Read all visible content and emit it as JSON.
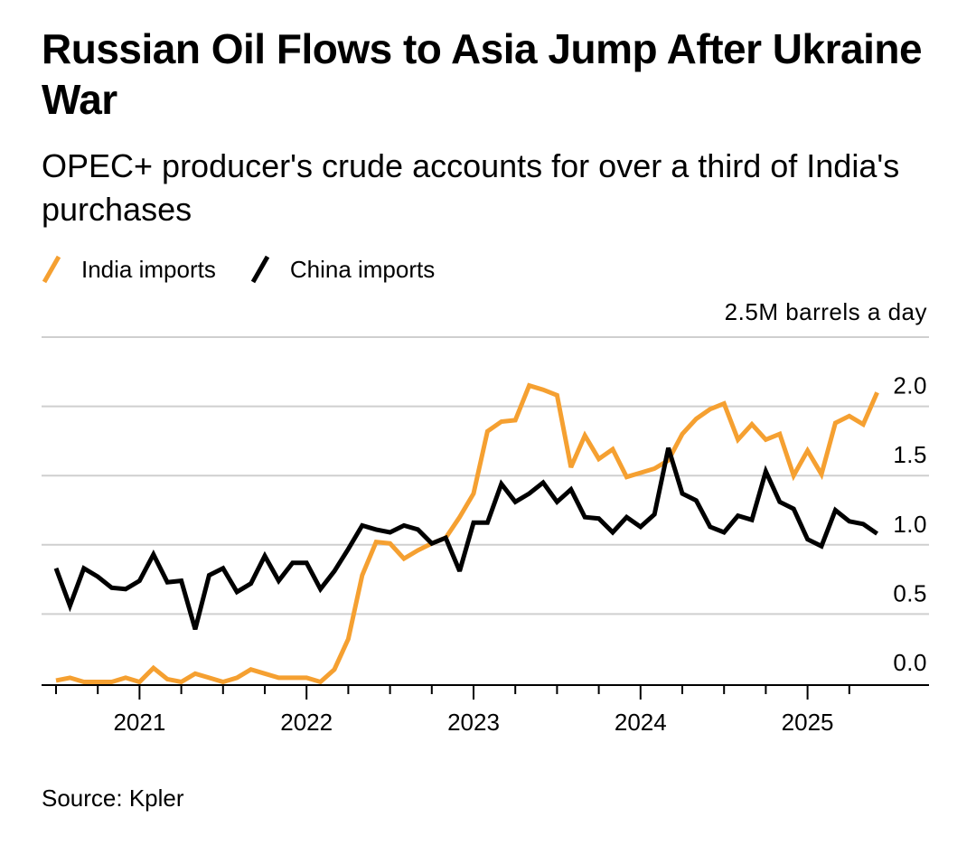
{
  "header": {
    "title": "Russian Oil Flows to Asia Jump After Ukraine War",
    "subtitle": "OPEC+ producer's crude accounts for over a third of India's purchases"
  },
  "legend": [
    {
      "label": "India imports",
      "color": "#f5a031"
    },
    {
      "label": "China imports",
      "color": "#000000"
    }
  ],
  "footer": {
    "source": "Source: Kpler"
  },
  "chart_data": {
    "type": "line",
    "unit_label": "2.5M barrels a day",
    "x_start": "2020-07",
    "x_labels": [
      "2021",
      "2022",
      "2023",
      "2024",
      "2025"
    ],
    "y_tick_labels": [
      "2.0",
      "1.5",
      "1.0",
      "0.5",
      "0.0"
    ],
    "ylim": [
      0,
      2.5
    ],
    "grid": true,
    "legend_position": "top-left",
    "series": [
      {
        "name": "India imports",
        "color": "#f5a031",
        "values": [
          0.02,
          0.04,
          0.01,
          0.01,
          0.01,
          0.04,
          0.01,
          0.11,
          0.03,
          0.01,
          0.07,
          0.04,
          0.01,
          0.04,
          0.1,
          0.07,
          0.04,
          0.04,
          0.04,
          0.01,
          0.1,
          0.32,
          0.78,
          1.02,
          1.01,
          0.9,
          0.96,
          1.01,
          1.05,
          1.2,
          1.37,
          1.82,
          1.89,
          1.9,
          2.15,
          2.12,
          2.08,
          1.56,
          1.79,
          1.62,
          1.69,
          1.49,
          1.52,
          1.55,
          1.61,
          1.8,
          1.91,
          1.98,
          2.02,
          1.76,
          1.87,
          1.76,
          1.8,
          1.5,
          1.68,
          1.51,
          1.88,
          1.93,
          1.87,
          2.1
        ]
      },
      {
        "name": "China imports",
        "color": "#000000",
        "values": [
          0.83,
          0.56,
          0.83,
          0.77,
          0.69,
          0.68,
          0.74,
          0.93,
          0.73,
          0.74,
          0.39,
          0.78,
          0.83,
          0.66,
          0.72,
          0.92,
          0.74,
          0.87,
          0.87,
          0.68,
          0.81,
          0.97,
          1.14,
          1.11,
          1.09,
          1.14,
          1.11,
          1.01,
          1.05,
          0.81,
          1.16,
          1.16,
          1.44,
          1.31,
          1.37,
          1.45,
          1.31,
          1.4,
          1.2,
          1.19,
          1.09,
          1.2,
          1.13,
          1.22,
          1.7,
          1.37,
          1.32,
          1.13,
          1.09,
          1.21,
          1.18,
          1.53,
          1.31,
          1.26,
          1.04,
          0.99,
          1.25,
          1.17,
          1.15,
          1.08
        ]
      }
    ]
  }
}
